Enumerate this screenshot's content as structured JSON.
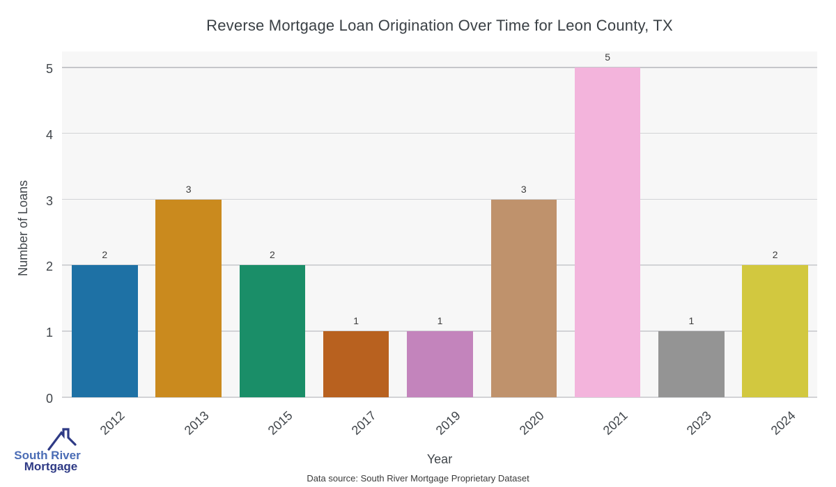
{
  "chart_data": {
    "type": "bar",
    "title": "Reverse Mortgage Loan Origination Over Time for Leon County, TX",
    "xlabel": "Year",
    "ylabel": "Number of Loans",
    "categories": [
      "2012",
      "2013",
      "2015",
      "2017",
      "2019",
      "2020",
      "2021",
      "2023",
      "2024"
    ],
    "values": [
      2,
      3,
      2,
      1,
      1,
      3,
      5,
      1,
      2
    ],
    "bar_colors": [
      "#1e71a5",
      "#ca8a1e",
      "#1a8e68",
      "#b8611f",
      "#c384bc",
      "#bf926c",
      "#f3b4dc",
      "#949494",
      "#d2c83f"
    ],
    "yticks": [
      0,
      1,
      2,
      3,
      4,
      5
    ],
    "ylim": [
      0,
      5.25
    ],
    "grid": true,
    "legend_position": "none",
    "plot_background": "#f7f7f7",
    "gridline_color": "#d2d3d6"
  },
  "footer": {
    "source_note": "Data source: South River Mortgage Proprietary Dataset"
  },
  "branding": {
    "logo_line1": "South River",
    "logo_line2": "Mortgage",
    "logo_color_primary": "#4a6cb5",
    "logo_color_secondary": "#2e3a85"
  }
}
